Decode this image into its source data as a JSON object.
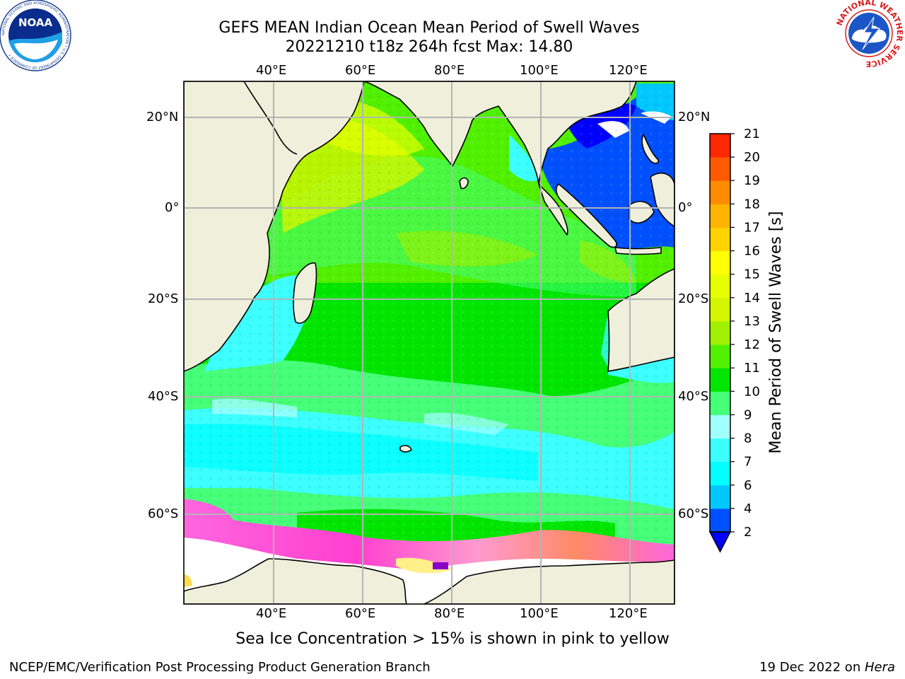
{
  "title": {
    "line1": "GEFS MEAN Indian Ocean Mean Period of Swell Waves",
    "line2": "20221210 t18z 264h fcst   Max: 14.80"
  },
  "map": {
    "lon_ticks_top": [
      "40°E",
      "60°E",
      "80°E",
      "100°E",
      "120°E"
    ],
    "lon_ticks_bottom": [
      "40°E",
      "60°E",
      "80°E",
      "100°E",
      "120°E"
    ],
    "lat_ticks_left": [
      "20°N",
      "0°",
      "20°S",
      "40°S",
      "60°S"
    ],
    "lat_ticks_right": [
      "20°N",
      "0°",
      "20°S",
      "40°S",
      "60°S"
    ],
    "colors": {
      "land": "#efefdc",
      "seaice": "#ffffff",
      "grid": "#b4b4b4"
    }
  },
  "colorbar": {
    "label": "Mean Period of Swell Waves [s]",
    "ticks": [
      "2",
      "4",
      "6",
      "7",
      "8",
      "9",
      "10",
      "11",
      "12",
      "13",
      "14",
      "15",
      "16",
      "17",
      "18",
      "19",
      "20",
      "21"
    ],
    "colors": [
      "#0050ff",
      "#00c8ff",
      "#00ffff",
      "#3cffff",
      "#a0ffff",
      "#46ff78",
      "#00e600",
      "#50f000",
      "#a0f000",
      "#d2f500",
      "#e6ff00",
      "#ffff00",
      "#ffd200",
      "#ffb400",
      "#ff8c00",
      "#ff5a00",
      "#ff2800",
      "#ff0000"
    ],
    "under_color": "#0000ff"
  },
  "note": "Sea Ice Concentration > 15% is shown in pink to yellow",
  "footer": {
    "left": "NCEP/EMC/Verification Post Processing Product Generation Branch",
    "right_date": "19 Dec 2022 on ",
    "right_host": "Hera"
  },
  "logos": {
    "noaa_text": "NOAA",
    "noaa_ring": "NATIONAL OCEANIC AND ATMOSPHERIC ADMINISTRATION • U.S. DEPARTMENT OF COMMERCE •",
    "nws_ring": "NATIONAL WEATHER SERVICE"
  }
}
